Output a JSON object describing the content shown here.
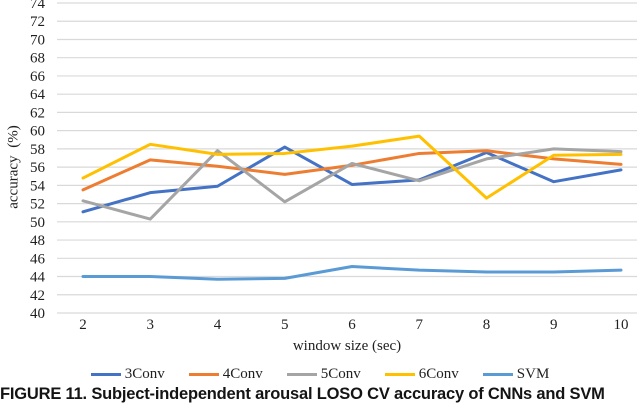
{
  "figure": {
    "caption": "FIGURE 11. Subject-independent arousal LOSO CV accuracy of CNNs and SVM"
  },
  "chart_data": {
    "type": "line",
    "title": "",
    "xlabel": "window size (sec)",
    "ylabel": "accuracy (%)",
    "x": [
      2,
      3,
      4,
      5,
      6,
      7,
      8,
      9,
      10
    ],
    "ylim": [
      40,
      74
    ],
    "ytick_step": 2,
    "grid": "horizontal",
    "legend_position": "bottom",
    "series": [
      {
        "name": "3Conv",
        "color": "#4472C4",
        "values": [
          51.1,
          53.2,
          53.9,
          58.2,
          54.1,
          54.6,
          57.6,
          54.4,
          55.7
        ]
      },
      {
        "name": "4Conv",
        "color": "#ED7D31",
        "values": [
          53.5,
          56.8,
          56.1,
          55.2,
          56.2,
          57.5,
          57.8,
          56.9,
          56.3
        ]
      },
      {
        "name": "5Conv",
        "color": "#A5A5A5",
        "values": [
          52.3,
          50.3,
          57.8,
          52.2,
          56.4,
          54.5,
          56.9,
          58.0,
          57.7
        ]
      },
      {
        "name": "6Conv",
        "color": "#FFC000",
        "values": [
          54.8,
          58.5,
          57.4,
          57.5,
          58.3,
          59.4,
          52.6,
          57.3,
          57.4
        ]
      },
      {
        "name": "SVM",
        "color": "#5B9BD5",
        "values": [
          44.0,
          44.0,
          43.7,
          43.8,
          45.1,
          44.7,
          44.5,
          44.5,
          44.7
        ]
      }
    ]
  },
  "colors": {
    "gridline": "#D9D9D9",
    "text": "#1F1F1F"
  }
}
